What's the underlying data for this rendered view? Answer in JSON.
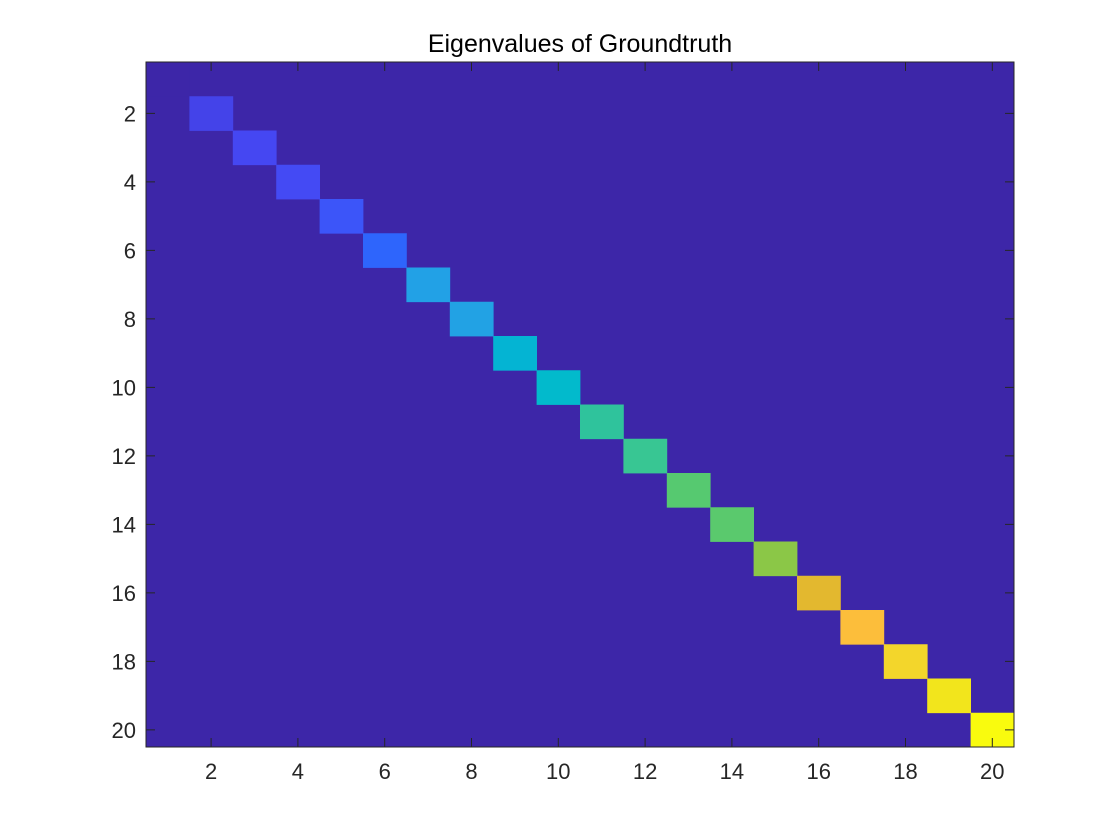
{
  "chart_data": {
    "type": "heatmap",
    "title": "Eigenvalues of Groundtruth",
    "xlabel": "",
    "ylabel": "",
    "size": 20,
    "xlim": [
      0.5,
      20.5
    ],
    "ylim": [
      0.5,
      20.5
    ],
    "y_direction": "reversed",
    "x_ticks": [
      2,
      4,
      6,
      8,
      10,
      12,
      14,
      16,
      18,
      20
    ],
    "y_ticks": [
      2,
      4,
      6,
      8,
      10,
      12,
      14,
      16,
      18,
      20
    ],
    "grid": false,
    "colorbar": false,
    "colormap": "parula",
    "background_color": "#3d26a8",
    "diagonal": [
      {
        "index": 1,
        "value": 0.0,
        "color": "#3d26a8"
      },
      {
        "index": 2,
        "value": 0.07,
        "color": "#4443e9"
      },
      {
        "index": 3,
        "value": 0.09,
        "color": "#4547f2"
      },
      {
        "index": 4,
        "value": 0.1,
        "color": "#444af4"
      },
      {
        "index": 5,
        "value": 0.13,
        "color": "#3c55f9"
      },
      {
        "index": 6,
        "value": 0.17,
        "color": "#2e65fc"
      },
      {
        "index": 7,
        "value": 0.34,
        "color": "#22a1e6"
      },
      {
        "index": 8,
        "value": 0.35,
        "color": "#22a2e4"
      },
      {
        "index": 9,
        "value": 0.42,
        "color": "#04b4d3"
      },
      {
        "index": 10,
        "value": 0.45,
        "color": "#02bacc"
      },
      {
        "index": 11,
        "value": 0.53,
        "color": "#2fc39c"
      },
      {
        "index": 12,
        "value": 0.55,
        "color": "#38c693"
      },
      {
        "index": 13,
        "value": 0.6,
        "color": "#56c970"
      },
      {
        "index": 14,
        "value": 0.61,
        "color": "#5ac96d"
      },
      {
        "index": 15,
        "value": 0.68,
        "color": "#8bc747"
      },
      {
        "index": 16,
        "value": 0.85,
        "color": "#e3b82f"
      },
      {
        "index": 17,
        "value": 0.89,
        "color": "#fcbe3b"
      },
      {
        "index": 18,
        "value": 0.93,
        "color": "#f3d62b"
      },
      {
        "index": 19,
        "value": 0.97,
        "color": "#f2e51c"
      },
      {
        "index": 20,
        "value": 1.0,
        "color": "#f9fb0e"
      }
    ]
  }
}
